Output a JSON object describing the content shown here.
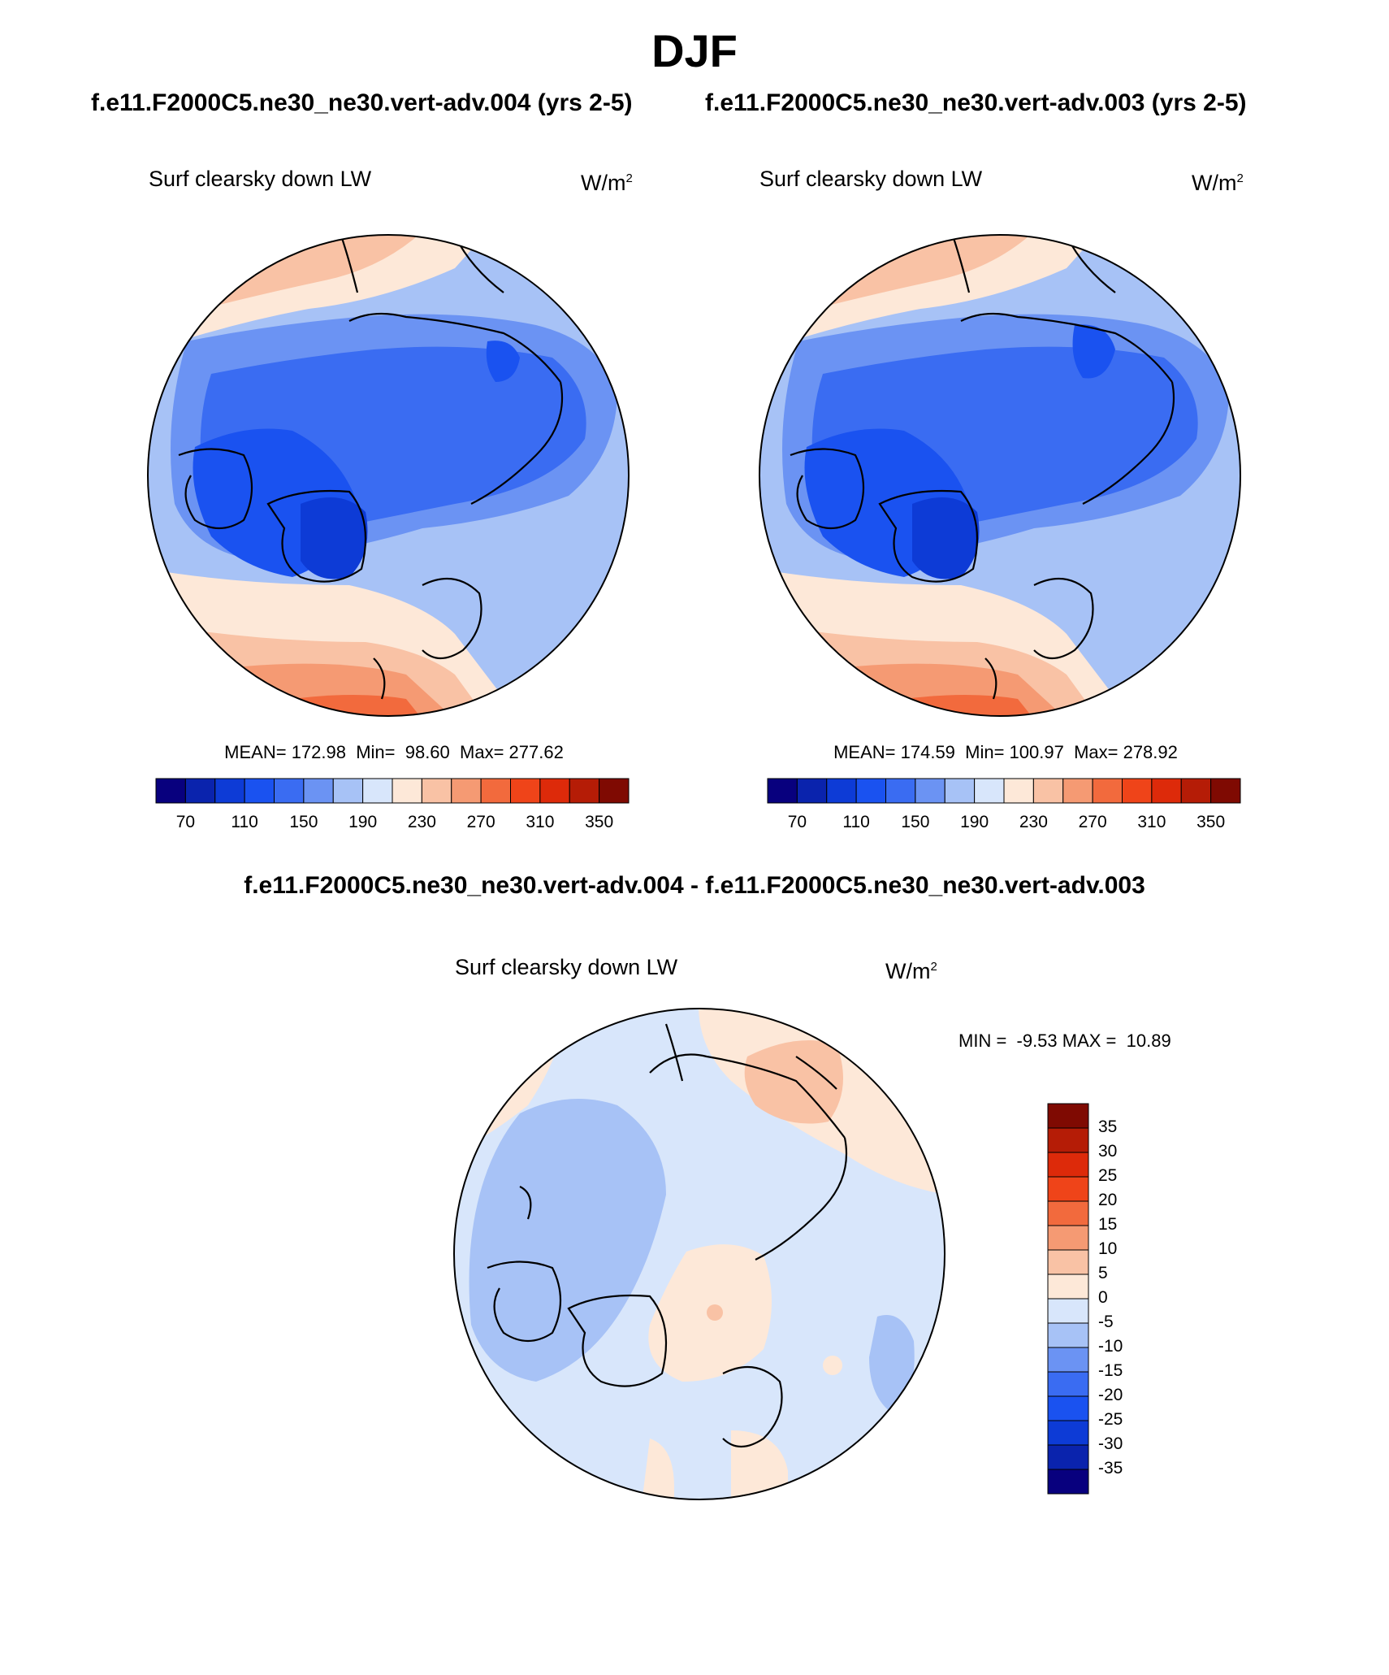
{
  "header": {
    "title": "DJF",
    "left_case": "f.e11.F2000C5.ne30_ne30.vert-adv.004 (yrs 2-5)",
    "right_case": "f.e11.F2000C5.ne30_ne30.vert-adv.003 (yrs 2-5)",
    "diff_title": "f.e11.F2000C5.ne30_ne30.vert-adv.004 - f.e11.F2000C5.ne30_ne30.vert-adv.003"
  },
  "panels": [
    {
      "label": "Surf clearsky down LW",
      "units_base": "W/m",
      "units_exp": "2",
      "stats": "MEAN= 172.98  Min=  98.60  Max= 277.62"
    },
    {
      "label": "Surf clearsky down LW",
      "units_base": "W/m",
      "units_exp": "2",
      "stats": "MEAN= 174.59  Min= 100.97  Max= 278.92"
    }
  ],
  "diff_panel": {
    "label": "Surf clearsky down LW",
    "units_base": "W/m",
    "units_exp": "2",
    "stats": "MIN =  -9.53 MAX =  10.89"
  },
  "colorbar_abs": {
    "colors": [
      "#08007e",
      "#0a23ad",
      "#0d3bd6",
      "#1a52f0",
      "#3a6cf2",
      "#6b93f3",
      "#a7c2f6",
      "#d8e6fb",
      "#fde8d8",
      "#f9c2a5",
      "#f59a73",
      "#f26a3d",
      "#ef4419",
      "#dd2a0a",
      "#b51c06",
      "#7f0a02"
    ],
    "tick_labels": [
      "70",
      "110",
      "150",
      "190",
      "230",
      "270",
      "310",
      "350"
    ]
  },
  "colorbar_diff": {
    "colors": [
      "#08007e",
      "#0a23ad",
      "#0d3bd6",
      "#1a52f0",
      "#3a6cf2",
      "#6b93f3",
      "#a7c2f6",
      "#d8e6fb",
      "#fde8d8",
      "#f9c2a5",
      "#f59a73",
      "#f26a3d",
      "#ef4419",
      "#dd2a0a",
      "#b51c06",
      "#7f0a02"
    ],
    "tick_labels": [
      "-35",
      "-30",
      "-25",
      "-20",
      "-15",
      "-10",
      "-5",
      "0",
      "5",
      "10",
      "15",
      "20",
      "25",
      "30",
      "35"
    ]
  }
}
